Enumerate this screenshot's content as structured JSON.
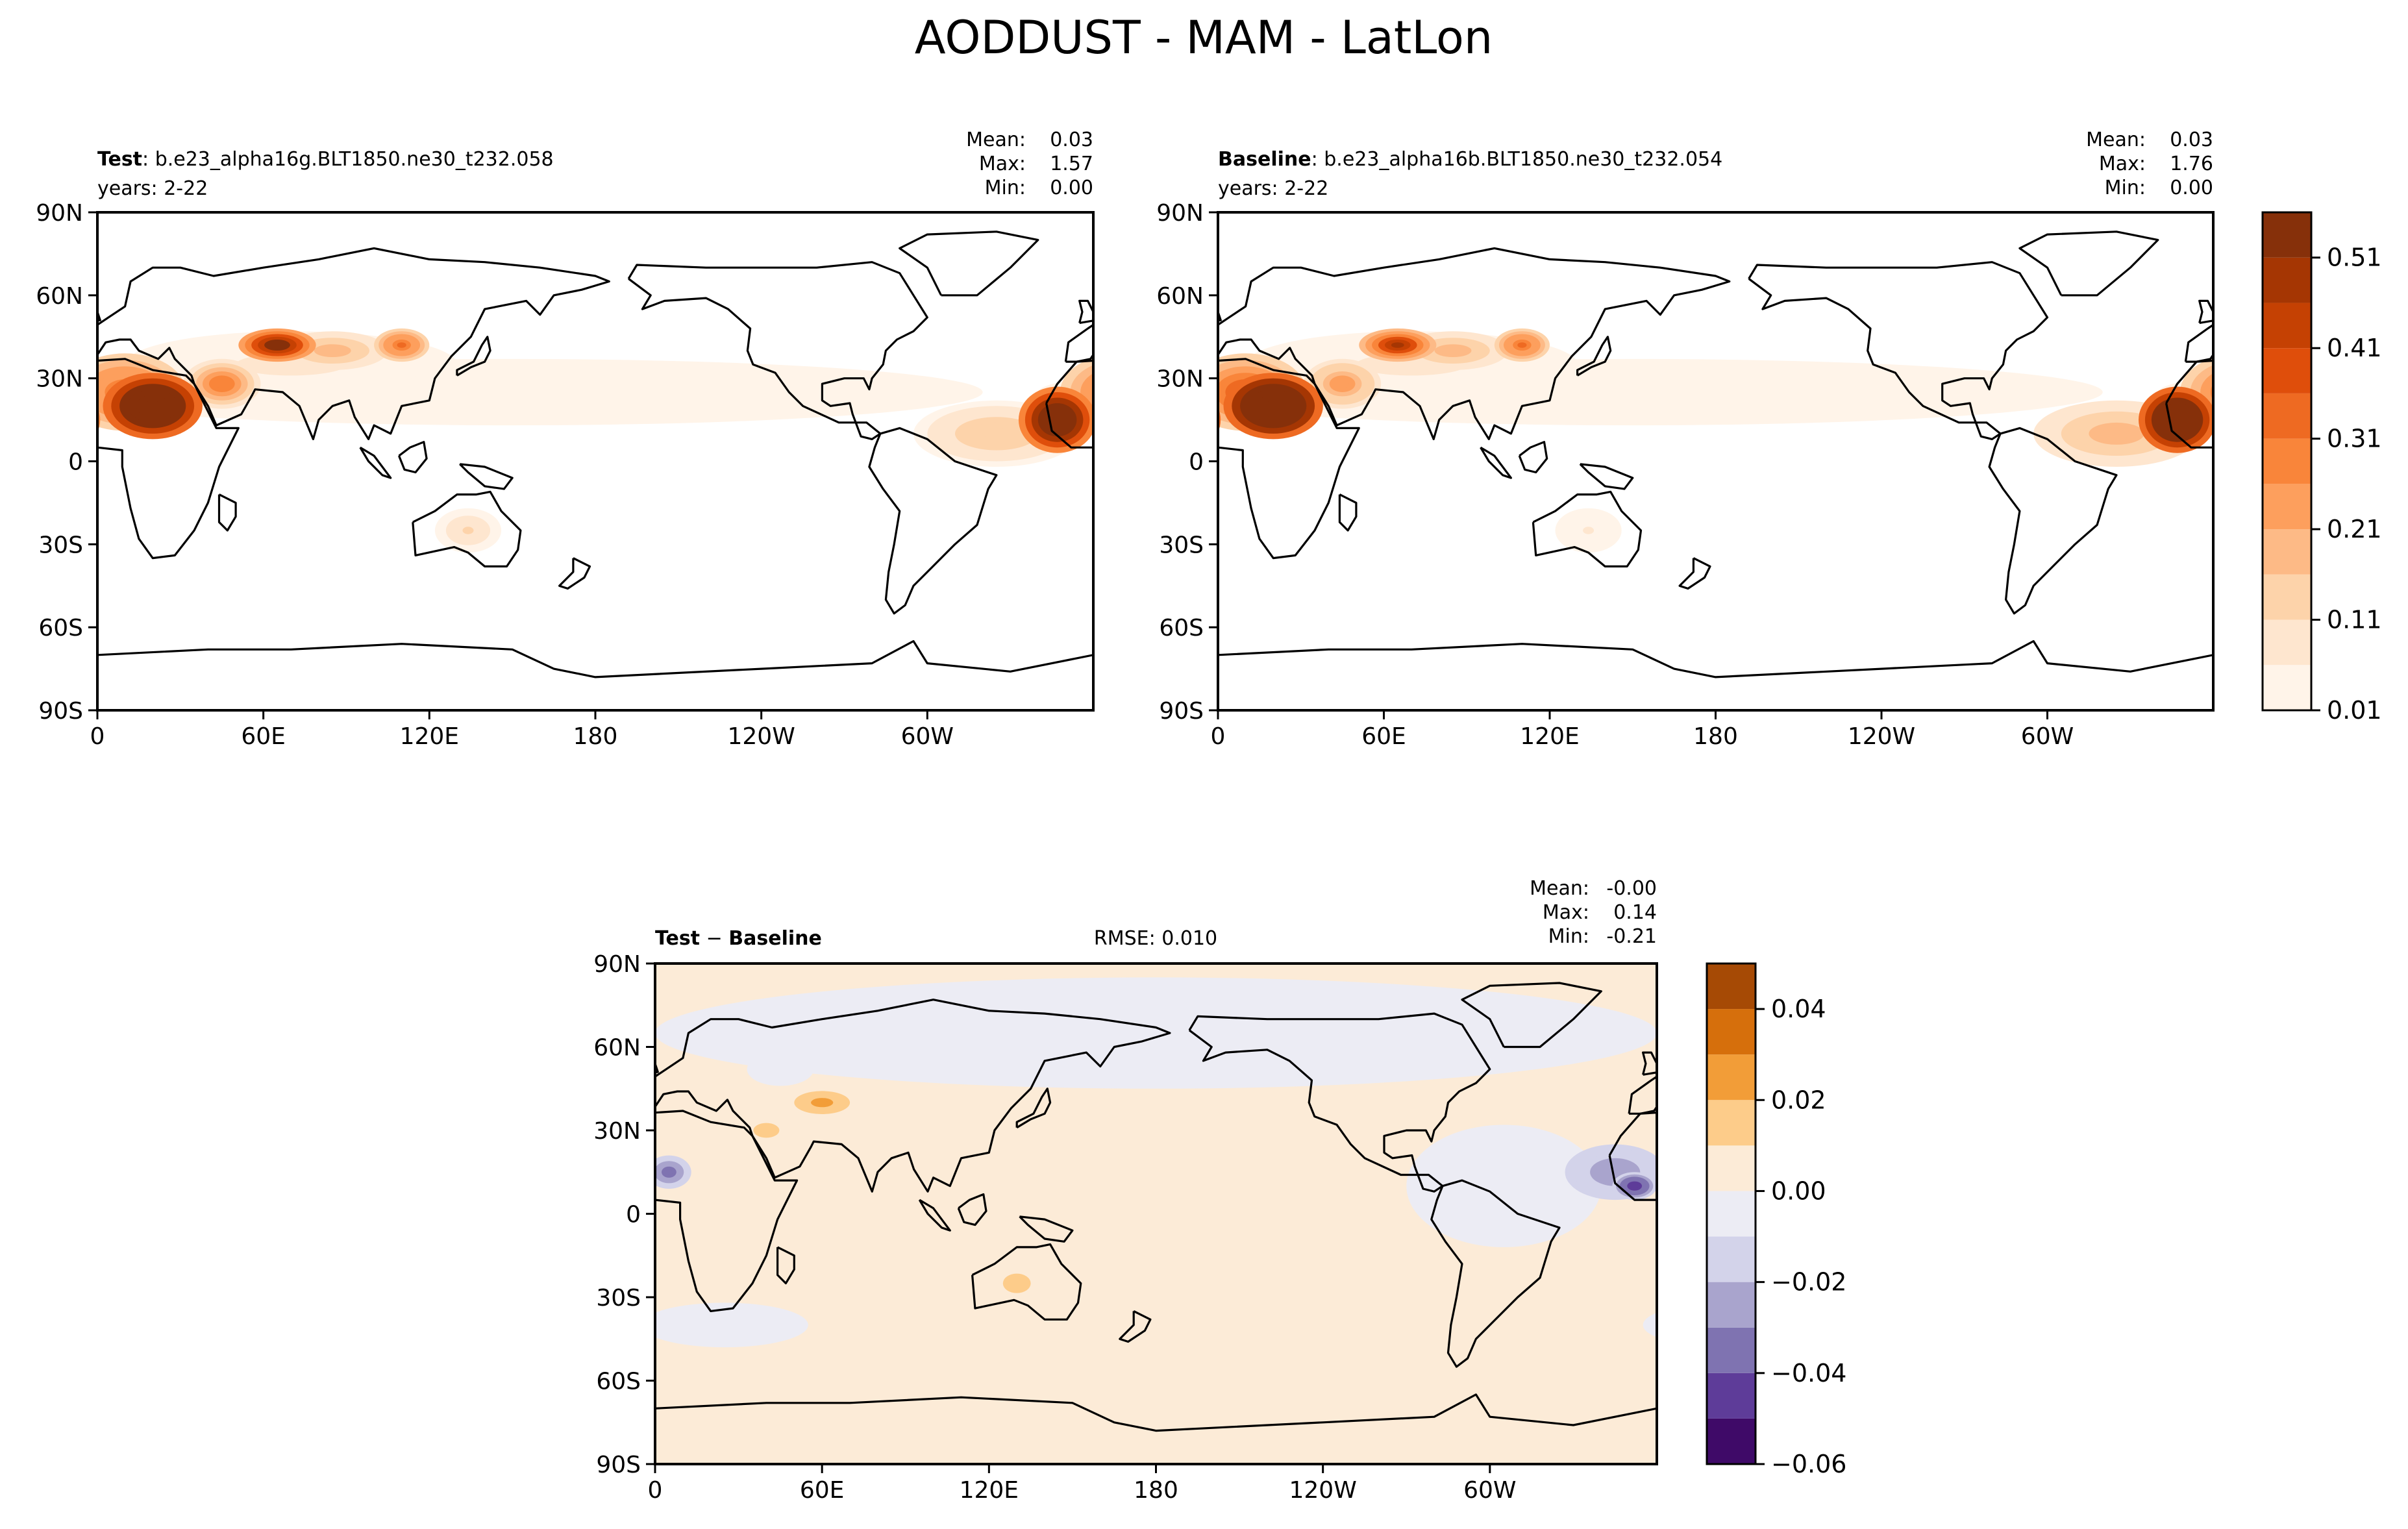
{
  "figure": {
    "title": "AODDUST - MAM - LatLon"
  },
  "colors": {
    "seq_levels": [
      "#fff4e9",
      "#fee6cf",
      "#fdd3aa",
      "#fdba86",
      "#fd9f5d",
      "#f9853a",
      "#ee6a22",
      "#df4e0b",
      "#c54103",
      "#a53603",
      "#86300a"
    ],
    "div_levels": [
      "#3f0a68",
      "#5e3c99",
      "#7f73b1",
      "#a9a4cd",
      "#d3d3ea",
      "#ececf4",
      "#fcebd7",
      "#fdcc8a",
      "#f29d38",
      "#d66f0c",
      "#a64a05"
    ],
    "coast": "#000000"
  },
  "panels": {
    "test": {
      "label_bold": "Test",
      "label_sep": ": ",
      "label_rest": "b.e23_alpha16g.BLT1850.ne30_t232.058",
      "years": "years: 2-22",
      "stats": {
        "mean_label": "Mean:",
        "mean": "0.03",
        "max_label": "Max:",
        "max": "1.57",
        "min_label": "Min:",
        "min": "0.00"
      }
    },
    "baseline": {
      "label_bold": "Baseline",
      "label_sep": ": ",
      "label_rest": "b.e23_alpha16b.BLT1850.ne30_t232.054",
      "years": "years: 2-22",
      "stats": {
        "mean_label": "Mean:",
        "mean": "0.03",
        "max_label": "Max:",
        "max": "1.76",
        "min_label": "Min:",
        "min": "0.00"
      }
    },
    "diff": {
      "label_a": "Test",
      "label_op": " − ",
      "label_b": "Baseline",
      "rmse": "RMSE: 0.010",
      "stats": {
        "mean_label": "Mean:",
        "mean": "-0.00",
        "max_label": "Max:",
        "max": "0.14",
        "min_label": "Min:",
        "min": "-0.21"
      }
    }
  },
  "chart_data": [
    {
      "type": "heatmap",
      "name": "Test",
      "projection": "PlateCarree, central longitude 180",
      "x_ticks": [
        "0",
        "60E",
        "120E",
        "180",
        "120W",
        "60W"
      ],
      "x_tick_lons": [
        0,
        60,
        120,
        180,
        240,
        300
      ],
      "y_ticks": [
        "90N",
        "60N",
        "30N",
        "0",
        "30S",
        "60S",
        "90S"
      ],
      "y_tick_lats": [
        90,
        60,
        30,
        0,
        -30,
        -60,
        -90
      ],
      "xlim": [
        0,
        360
      ],
      "ylim": [
        -90,
        90
      ],
      "features": [
        {
          "lon": 20,
          "lat": 20,
          "rlon": 18,
          "rlat": 12,
          "value": 0.9
        },
        {
          "lon": 10,
          "lat": 25,
          "rlon": 22,
          "rlat": 14,
          "value": 0.35
        },
        {
          "lon": 45,
          "lat": 28,
          "rlon": 14,
          "rlat": 9,
          "value": 0.3
        },
        {
          "lon": 65,
          "lat": 42,
          "rlon": 14,
          "rlat": 6,
          "value": 0.6
        },
        {
          "lon": 85,
          "lat": 40,
          "rlon": 20,
          "rlat": 7,
          "value": 0.2
        },
        {
          "lon": 110,
          "lat": 42,
          "rlon": 10,
          "rlat": 6,
          "value": 0.35
        },
        {
          "lon": 70,
          "lat": 35,
          "rlon": 60,
          "rlat": 12,
          "value": 0.08
        },
        {
          "lon": 134,
          "lat": -25,
          "rlon": 12,
          "rlat": 8,
          "value": 0.12
        },
        {
          "lon": 347,
          "lat": 15,
          "rlon": 14,
          "rlat": 12,
          "value": 0.8
        },
        {
          "lon": 325,
          "lat": 10,
          "rlon": 30,
          "rlat": 12,
          "value": 0.15
        },
        {
          "lon": 150,
          "lat": 25,
          "rlon": 170,
          "rlat": 12,
          "value": 0.04
        }
      ]
    },
    {
      "type": "heatmap",
      "name": "Baseline",
      "projection": "PlateCarree, central longitude 180",
      "x_ticks": [
        "0",
        "60E",
        "120E",
        "180",
        "120W",
        "60W"
      ],
      "x_tick_lons": [
        0,
        60,
        120,
        180,
        240,
        300
      ],
      "y_ticks": [
        "90N",
        "60N",
        "30N",
        "0",
        "30S",
        "60S",
        "90S"
      ],
      "y_tick_lats": [
        90,
        60,
        30,
        0,
        -30,
        -60,
        -90
      ],
      "xlim": [
        0,
        360
      ],
      "ylim": [
        -90,
        90
      ],
      "features": [
        {
          "lon": 20,
          "lat": 20,
          "rlon": 18,
          "rlat": 12,
          "value": 1.0
        },
        {
          "lon": 10,
          "lat": 25,
          "rlon": 22,
          "rlat": 14,
          "value": 0.4
        },
        {
          "lon": 45,
          "lat": 28,
          "rlon": 14,
          "rlat": 9,
          "value": 0.25
        },
        {
          "lon": 65,
          "lat": 42,
          "rlon": 14,
          "rlat": 6,
          "value": 0.5
        },
        {
          "lon": 85,
          "lat": 40,
          "rlon": 20,
          "rlat": 7,
          "value": 0.2
        },
        {
          "lon": 110,
          "lat": 42,
          "rlon": 10,
          "rlat": 6,
          "value": 0.35
        },
        {
          "lon": 70,
          "lat": 35,
          "rlon": 60,
          "rlat": 12,
          "value": 0.08
        },
        {
          "lon": 134,
          "lat": -25,
          "rlon": 12,
          "rlat": 8,
          "value": 0.06
        },
        {
          "lon": 347,
          "lat": 15,
          "rlon": 14,
          "rlat": 12,
          "value": 0.9
        },
        {
          "lon": 325,
          "lat": 10,
          "rlon": 30,
          "rlat": 12,
          "value": 0.2
        },
        {
          "lon": 150,
          "lat": 25,
          "rlon": 170,
          "rlat": 12,
          "value": 0.04
        }
      ]
    },
    {
      "type": "heatmap",
      "name": "Test − Baseline",
      "projection": "PlateCarree, central longitude 180",
      "x_ticks": [
        "0",
        "60E",
        "120E",
        "180",
        "120W",
        "60W"
      ],
      "x_tick_lons": [
        0,
        60,
        120,
        180,
        240,
        300
      ],
      "y_ticks": [
        "90N",
        "60N",
        "30N",
        "0",
        "30S",
        "60S",
        "90S"
      ],
      "y_tick_lats": [
        90,
        60,
        30,
        0,
        -30,
        -60,
        -90
      ],
      "xlim": [
        0,
        360
      ],
      "ylim": [
        -90,
        90
      ],
      "background_value": 0.003,
      "features": [
        {
          "lon": 180,
          "lat": 65,
          "rlon": 180,
          "rlat": 20,
          "value": -0.004
        },
        {
          "lon": 305,
          "lat": 10,
          "rlon": 35,
          "rlat": 22,
          "value": -0.006
        },
        {
          "lon": 345,
          "lat": 15,
          "rlon": 18,
          "rlat": 10,
          "value": -0.03
        },
        {
          "lon": 352,
          "lat": 10,
          "rlon": 8,
          "rlat": 5,
          "value": -0.05
        },
        {
          "lon": 5,
          "lat": 15,
          "rlon": 8,
          "rlat": 6,
          "value": -0.04
        },
        {
          "lon": 45,
          "lat": 52,
          "rlon": 12,
          "rlat": 6,
          "value": -0.01
        },
        {
          "lon": 40,
          "lat": 30,
          "rlon": 14,
          "rlat": 8,
          "value": 0.012
        },
        {
          "lon": 60,
          "lat": 40,
          "rlon": 12,
          "rlat": 5,
          "value": 0.025
        },
        {
          "lon": 130,
          "lat": -25,
          "rlon": 10,
          "rlat": 7,
          "value": 0.015
        },
        {
          "lon": 25,
          "lat": -40,
          "rlon": 30,
          "rlat": 8,
          "value": -0.004
        }
      ]
    }
  ],
  "colorbars": {
    "seq": {
      "levels": [
        0.01,
        0.06,
        0.11,
        0.16,
        0.21,
        0.26,
        0.31,
        0.36,
        0.41,
        0.46,
        0.51,
        0.56
      ],
      "tick_values": [
        0.01,
        0.11,
        0.21,
        0.31,
        0.41,
        0.51
      ],
      "tick_labels": [
        "0.01",
        "0.11",
        "0.21",
        "0.31",
        "0.41",
        "0.51"
      ]
    },
    "div": {
      "levels": [
        -0.06,
        -0.05,
        -0.04,
        -0.03,
        -0.02,
        -0.01,
        0.0,
        0.01,
        0.02,
        0.03,
        0.04,
        0.05
      ],
      "tick_values": [
        -0.06,
        -0.04,
        -0.02,
        0.0,
        0.02,
        0.04
      ],
      "tick_labels": [
        "−0.06",
        "−0.04",
        "−0.02",
        "0.00",
        "0.02",
        "0.04"
      ]
    }
  }
}
